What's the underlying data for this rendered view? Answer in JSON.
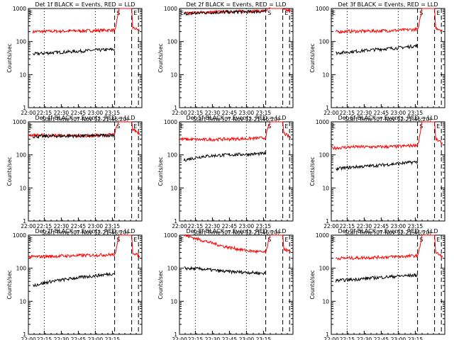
{
  "figure": {
    "x_tick_labels": [
      "22:00",
      "22:15",
      "22:30",
      "22:45",
      "23:00",
      "23:15"
    ],
    "xlabel": "Start Time (07-Nov-12 21:46:20)",
    "ylabel": "Counts/sec",
    "y_tick_labels": [
      "1",
      "10",
      "100",
      "1000"
    ],
    "marker_labels": [
      "E",
      "S",
      "E"
    ],
    "colors": {
      "events": "#000000",
      "lld": "#ff0000",
      "axes": "#000000"
    }
  },
  "chart_data": [
    {
      "type": "line",
      "title": "Det 1f BLACK = Events, RED = LLD",
      "xlabel": "Start Time (07-Nov-12 21:46:20)",
      "ylabel": "Counts/sec",
      "yscale": "log",
      "ylim": [
        1,
        1000
      ],
      "x_unit": "minutes after 21:46:20",
      "xlim": [
        0,
        100
      ],
      "series": [
        {
          "color": "red",
          "points": [
            [
              4,
              200
            ],
            [
              20,
              205
            ],
            [
              40,
              210
            ],
            [
              60,
              215
            ],
            [
              76,
              225
            ],
            [
              77,
              260
            ],
            [
              80,
              1000
            ],
            [
              91,
              1000
            ],
            [
              92,
              260
            ],
            [
              98,
              220
            ]
          ]
        },
        {
          "color": "black",
          "points": [
            [
              4,
              42
            ],
            [
              20,
              46
            ],
            [
              40,
              50
            ],
            [
              60,
              55
            ],
            [
              76,
              58
            ]
          ]
        }
      ]
    },
    {
      "type": "line",
      "title": "Det 2f BLACK = Events, RED = LLD",
      "xlabel": "Start Time (07-Nov-12 21:46:20)",
      "ylabel": "Counts/sec",
      "yscale": "log",
      "ylim": [
        1,
        1000
      ],
      "x_unit": "minutes after 21:46:20",
      "xlim": [
        0,
        100
      ],
      "series": [
        {
          "color": "red",
          "points": [
            [
              4,
              720
            ],
            [
              20,
              760
            ],
            [
              40,
              800
            ],
            [
              60,
              820
            ],
            [
              76,
              850
            ],
            [
              77,
              900
            ],
            [
              80,
              1000
            ],
            [
              91,
              1000
            ],
            [
              92,
              900
            ],
            [
              98,
              850
            ]
          ]
        },
        {
          "color": "black",
          "points": [
            [
              4,
              700
            ],
            [
              20,
              740
            ],
            [
              40,
              780
            ],
            [
              60,
              800
            ],
            [
              76,
              820
            ]
          ]
        }
      ]
    },
    {
      "type": "line",
      "title": "Det 3f BLACK = Events, RED = LLD",
      "xlabel": "Start Time (07-Nov-12 21:46:20)",
      "ylabel": "Counts/sec",
      "yscale": "log",
      "ylim": [
        1,
        1000
      ],
      "x_unit": "minutes after 21:46:20",
      "xlim": [
        0,
        100
      ],
      "series": [
        {
          "color": "red",
          "points": [
            [
              4,
              200
            ],
            [
              20,
              205
            ],
            [
              40,
              210
            ],
            [
              60,
              220
            ],
            [
              76,
              235
            ],
            [
              77,
              280
            ],
            [
              80,
              1000
            ],
            [
              91,
              1000
            ],
            [
              92,
              260
            ],
            [
              98,
              220
            ]
          ]
        },
        {
          "color": "black",
          "points": [
            [
              4,
              45
            ],
            [
              20,
              50
            ],
            [
              40,
              58
            ],
            [
              60,
              65
            ],
            [
              76,
              75
            ]
          ]
        }
      ]
    },
    {
      "type": "line",
      "title": "Det 4f BLACK = Events, RED = LLD",
      "xlabel": "Start Time (07-Nov-12 21:46:20)",
      "ylabel": "Counts/sec",
      "yscale": "log",
      "ylim": [
        1,
        1000
      ],
      "x_unit": "minutes after 21:46:20",
      "xlim": [
        0,
        100
      ],
      "series": [
        {
          "color": "red",
          "points": [
            [
              0,
              400
            ],
            [
              20,
              390
            ],
            [
              40,
              380
            ],
            [
              60,
              385
            ],
            [
              76,
              420
            ],
            [
              77,
              600
            ],
            [
              80,
              1000
            ],
            [
              91,
              1000
            ],
            [
              92,
              600
            ],
            [
              98,
              450
            ]
          ]
        },
        {
          "color": "black",
          "points": [
            [
              4,
              360
            ],
            [
              20,
              370
            ],
            [
              40,
              375
            ],
            [
              60,
              380
            ],
            [
              76,
              400
            ]
          ]
        }
      ]
    },
    {
      "type": "line",
      "title": "Det 5f BLACK = Events, RED = LLD",
      "xlabel": "Start Time (07-Nov-12 21:46:20)",
      "ylabel": "Counts/sec",
      "yscale": "log",
      "ylim": [
        1,
        1000
      ],
      "x_unit": "minutes after 21:46:20",
      "xlim": [
        0,
        100
      ],
      "series": [
        {
          "color": "red",
          "points": [
            [
              0,
              300
            ],
            [
              20,
              290
            ],
            [
              40,
              300
            ],
            [
              60,
              310
            ],
            [
              76,
              330
            ],
            [
              77,
              500
            ],
            [
              80,
              1000
            ],
            [
              91,
              1000
            ],
            [
              92,
              450
            ],
            [
              98,
              330
            ]
          ]
        },
        {
          "color": "black",
          "points": [
            [
              4,
              70
            ],
            [
              20,
              90
            ],
            [
              40,
              100
            ],
            [
              60,
              105
            ],
            [
              76,
              110
            ]
          ]
        }
      ]
    },
    {
      "type": "line",
      "title": "Det 6f BLACK = Events, RED = LLD",
      "xlabel": "Start Time (07-Nov-12 21:46:20)",
      "ylabel": "Counts/sec",
      "yscale": "log",
      "ylim": [
        1,
        1000
      ],
      "x_unit": "minutes after 21:46:20",
      "xlim": [
        0,
        100
      ],
      "series": [
        {
          "color": "red",
          "points": [
            [
              0,
              160
            ],
            [
              20,
              175
            ],
            [
              40,
              175
            ],
            [
              60,
              180
            ],
            [
              76,
              200
            ],
            [
              77,
              260
            ],
            [
              80,
              1000
            ],
            [
              91,
              1000
            ],
            [
              92,
              300
            ],
            [
              98,
              220
            ]
          ]
        },
        {
          "color": "black",
          "points": [
            [
              4,
              38
            ],
            [
              20,
              43
            ],
            [
              40,
              48
            ],
            [
              60,
              55
            ],
            [
              76,
              62
            ]
          ]
        }
      ]
    },
    {
      "type": "line",
      "title": "Det 7f BLACK = Events, RED = LLD",
      "xlabel": "Start Time (07-Nov-12 21:46:20)",
      "ylabel": "Counts/sec",
      "yscale": "log",
      "ylim": [
        1,
        1000
      ],
      "x_unit": "minutes after 21:46:20",
      "xlim": [
        0,
        100
      ],
      "series": [
        {
          "color": "red",
          "points": [
            [
              0,
              220
            ],
            [
              20,
              230
            ],
            [
              40,
              240
            ],
            [
              60,
              250
            ],
            [
              76,
              260
            ],
            [
              77,
              300
            ],
            [
              80,
              1000
            ],
            [
              91,
              1000
            ],
            [
              92,
              300
            ],
            [
              98,
              230
            ]
          ]
        },
        {
          "color": "black",
          "points": [
            [
              4,
              30
            ],
            [
              20,
              40
            ],
            [
              40,
              50
            ],
            [
              60,
              60
            ],
            [
              76,
              70
            ]
          ]
        }
      ]
    },
    {
      "type": "line",
      "title": "Det 8f BLACK = Events, RED = LLD",
      "xlabel": "Start Time (07-Nov-12 21:46:20)",
      "ylabel": "Counts/sec",
      "yscale": "log",
      "ylim": [
        1,
        1000
      ],
      "x_unit": "minutes after 21:46:20",
      "xlim": [
        0,
        100
      ],
      "series": [
        {
          "color": "red",
          "points": [
            [
              4,
              1000
            ],
            [
              20,
              700
            ],
            [
              40,
              450
            ],
            [
              60,
              340
            ],
            [
              76,
              300
            ],
            [
              77,
              400
            ],
            [
              80,
              1000
            ],
            [
              91,
              1000
            ],
            [
              92,
              400
            ],
            [
              98,
              300
            ]
          ]
        },
        {
          "color": "black",
          "points": [
            [
              4,
              100
            ],
            [
              20,
              95
            ],
            [
              40,
              80
            ],
            [
              60,
              75
            ],
            [
              76,
              70
            ]
          ]
        }
      ]
    },
    {
      "type": "line",
      "title": "Det 9f BLACK = Events, RED = LLD",
      "xlabel": "Start Time (07-Nov-12 21:46:20)",
      "ylabel": "Counts/sec",
      "yscale": "log",
      "ylim": [
        1,
        1000
      ],
      "x_unit": "minutes after 21:46:20",
      "xlim": [
        0,
        100
      ],
      "series": [
        {
          "color": "red",
          "points": [
            [
              4,
              200
            ],
            [
              20,
              205
            ],
            [
              40,
              215
            ],
            [
              60,
              225
            ],
            [
              76,
              240
            ],
            [
              77,
              300
            ],
            [
              80,
              1000
            ],
            [
              91,
              1000
            ],
            [
              92,
              300
            ],
            [
              98,
              220
            ]
          ]
        },
        {
          "color": "black",
          "points": [
            [
              4,
              42
            ],
            [
              20,
              46
            ],
            [
              40,
              52
            ],
            [
              60,
              58
            ],
            [
              76,
              62
            ]
          ]
        }
      ]
    }
  ]
}
